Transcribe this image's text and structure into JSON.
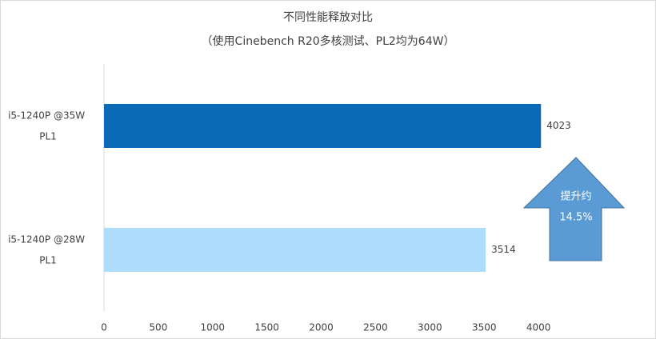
{
  "chart_data": {
    "type": "hbar",
    "title": "不同性能释放对比",
    "subtitle": "（使用Cinebench R20多核测试、PL2均为64W）",
    "categories": [
      "i5-1240P @35W PL1",
      "i5-1240P @28W PL1"
    ],
    "values": [
      4023,
      3514
    ],
    "colors": [
      "#0a6ab8",
      "#addcfc"
    ],
    "xlim": [
      0,
      4500
    ],
    "xticks": [
      0,
      500,
      1000,
      1500,
      2000,
      2500,
      3000,
      3500,
      4000
    ],
    "grid": false,
    "annotation": {
      "lines": [
        "提升约",
        "14.5%"
      ],
      "color": "#5b9bd5"
    }
  }
}
